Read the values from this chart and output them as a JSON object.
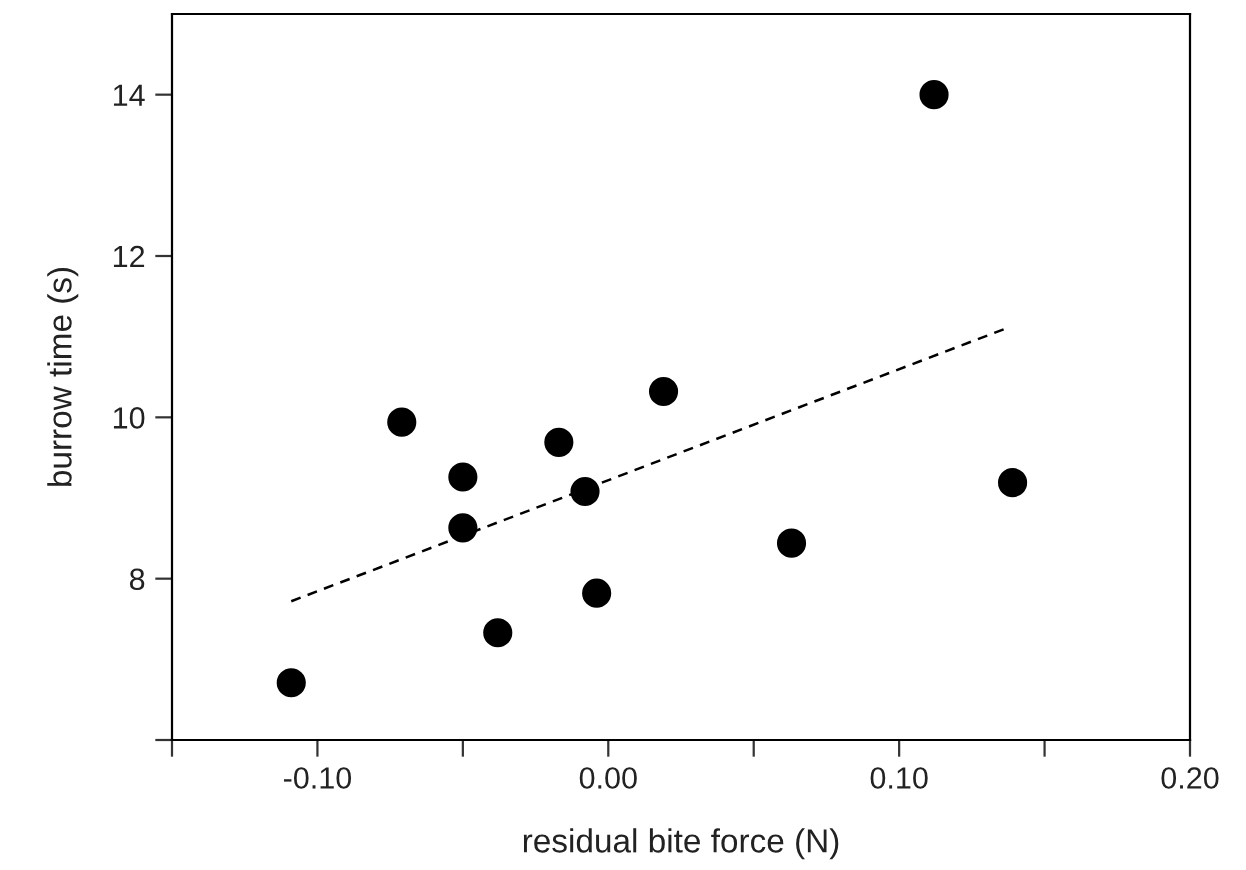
{
  "chart_data": {
    "type": "scatter",
    "xlabel": "residual bite force (N)",
    "ylabel": "burrow time (s)",
    "xlim": [
      -0.15,
      0.2
    ],
    "xticks": [
      {
        "value": -0.15,
        "label": null
      },
      {
        "value": -0.1,
        "label": "-0.10"
      },
      {
        "value": -0.05,
        "label": null
      },
      {
        "value": 0.0,
        "label": "0.00"
      },
      {
        "value": 0.05,
        "label": null
      },
      {
        "value": 0.1,
        "label": "0.10"
      },
      {
        "value": 0.15,
        "label": null
      },
      {
        "value": 0.2,
        "label": "0.20"
      }
    ],
    "ylim": [
      6,
      15
    ],
    "yticks": [
      {
        "value": 6,
        "label": null
      },
      8,
      10,
      12,
      14
    ],
    "grid": false,
    "legend": false,
    "series": [
      {
        "marker": "circle",
        "color": "#000000",
        "x": [
          -0.109,
          -0.071,
          -0.05,
          -0.05,
          -0.038,
          -0.017,
          -0.008,
          -0.004,
          0.019,
          0.063,
          0.112,
          0.139
        ],
        "values": [
          6.71,
          9.94,
          9.26,
          8.63,
          7.33,
          9.69,
          9.08,
          7.82,
          10.32,
          8.44,
          14.0,
          9.19
        ]
      },
      {
        "type": "line",
        "color": "#000000",
        "line_style": "dashed",
        "marker": "none",
        "x": [
          -0.109,
          0.138
        ],
        "values": [
          7.72,
          11.12
        ]
      }
    ]
  }
}
